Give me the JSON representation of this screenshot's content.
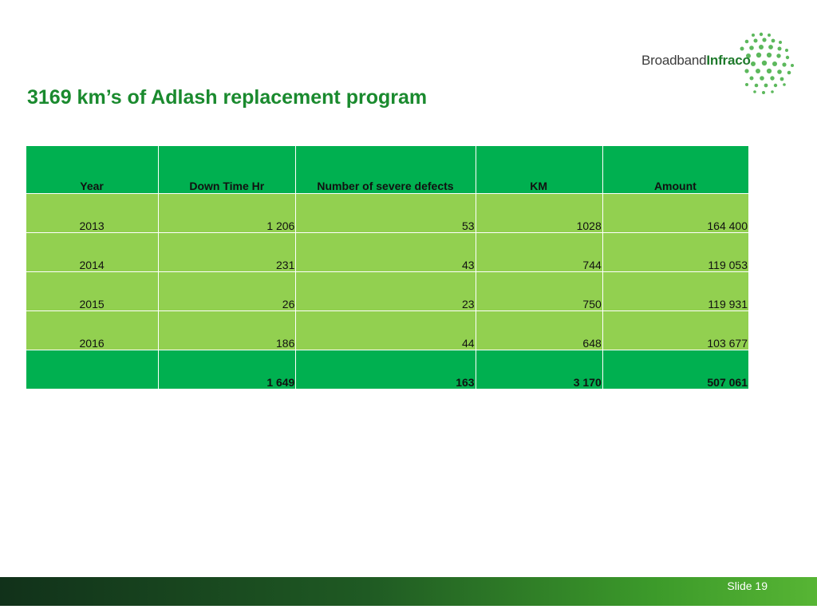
{
  "logo": {
    "text_regular": "Broadband",
    "text_bold": "Infraco",
    "colors": {
      "text": "#3d3d3d",
      "accent": "#1f7a2c",
      "dots": "#5cb85c"
    }
  },
  "title": "3169 km’s of Adlash replacement program",
  "table": {
    "headers": [
      "Year",
      "Down Time Hr",
      "Number of severe defects",
      "KM",
      "Amount"
    ],
    "rows": [
      [
        "2013",
        "1 206",
        "53",
        "1028",
        "164 400"
      ],
      [
        "2014",
        "231",
        "43",
        "744",
        "119 053"
      ],
      [
        "2015",
        "26",
        "23",
        "750",
        "119 931"
      ],
      [
        "2016",
        "186",
        "44",
        "648",
        "103 677"
      ]
    ],
    "total": [
      "",
      "1 649",
      "163",
      "3 170",
      "507 061"
    ],
    "colors": {
      "header": "#00b050",
      "row": "#92d050",
      "total": "#00b050"
    }
  },
  "footer": {
    "slide_label": "Slide 19"
  },
  "colors": {
    "title": "#1a8a2e"
  }
}
